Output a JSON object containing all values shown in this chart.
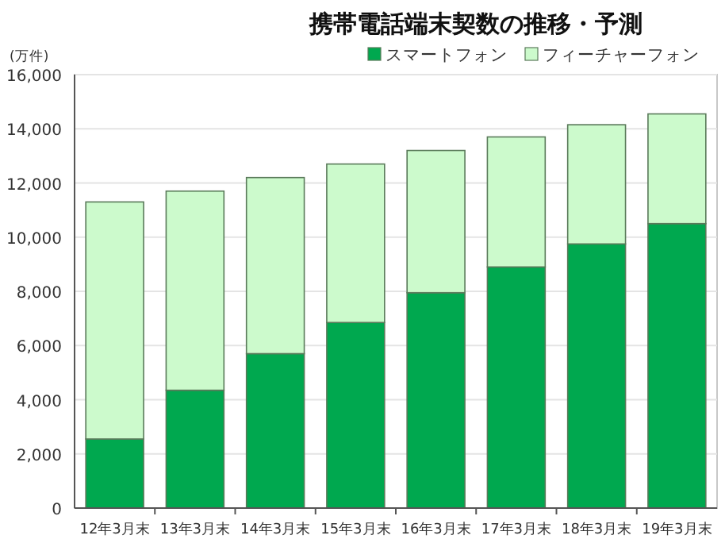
{
  "chart_data": {
    "type": "bar",
    "stacked": true,
    "title": "携帯電話端末契数の推移・予測",
    "ylabel": "(万件)",
    "categories": [
      "12年3月末",
      "13年3月末",
      "14年3月末",
      "15年3月末",
      "16年3月末",
      "17年3月末",
      "18年3月末",
      "19年3月末"
    ],
    "series": [
      {
        "name": "スマートフォン",
        "color": "#00a84f",
        "values": [
          2550,
          4350,
          5700,
          6850,
          7950,
          8900,
          9750,
          10500
        ]
      },
      {
        "name": "フィーチャーフォン",
        "color": "#ccfacc",
        "values": [
          8750,
          7350,
          6500,
          5850,
          5250,
          4800,
          4400,
          4050
        ]
      }
    ],
    "ylim": [
      0,
      16000
    ],
    "yticks": [
      {
        "value": 0,
        "label": "0"
      },
      {
        "value": 2000,
        "label": "2,000"
      },
      {
        "value": 4000,
        "label": "4,000"
      },
      {
        "value": 6000,
        "label": "6,000"
      },
      {
        "value": 8000,
        "label": "8,000"
      },
      {
        "value": 10000,
        "label": "10,000"
      },
      {
        "value": 12000,
        "label": "12,000"
      },
      {
        "value": 14000,
        "label": "14,000"
      },
      {
        "value": 16000,
        "label": "16,000"
      }
    ],
    "grid": "y",
    "legend": "top right"
  }
}
